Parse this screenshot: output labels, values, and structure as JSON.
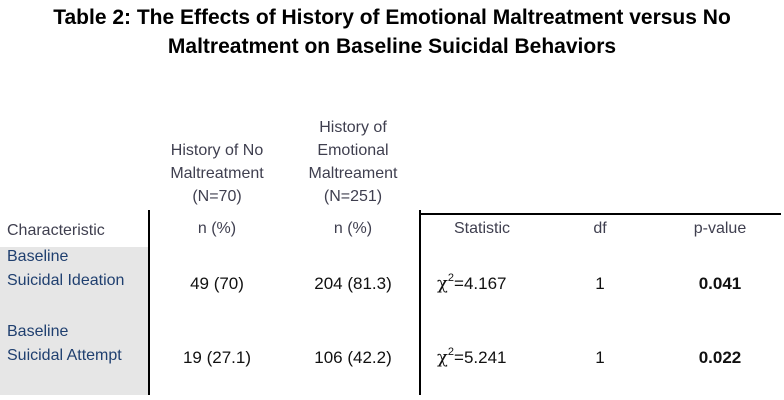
{
  "title": {
    "line1": "Table 2: The Effects of History of Emotional Maltreatment versus No",
    "line2": "Maltreatment on Baseline Suicidal Behaviors"
  },
  "columns": {
    "no_maltreatment": {
      "line1": "History of No",
      "line2": "Maltreatment",
      "line3": "(N=70)",
      "sub": "n (%)"
    },
    "emotional": {
      "line1": "History of",
      "line2": "Emotional",
      "line3": "Maltreament",
      "line4": "(N=251)",
      "sub": "n (%)"
    },
    "characteristic": "Characteristic",
    "statistic": "Statistic",
    "df": "df",
    "p_value": "p-value"
  },
  "rows": [
    {
      "label_line1": "Baseline",
      "label_line2": "Suicidal Ideation",
      "no_maltreatment": "49 (70)",
      "emotional": "204 (81.3)",
      "chi_symbol": "χ",
      "superscript": "2",
      "statistic_value": "=4.167",
      "df": "1",
      "p_value": "0.041"
    },
    {
      "label_line1": "Baseline",
      "label_line2": "Suicidal Attempt",
      "no_maltreatment": "19 (27.1)",
      "emotional": "106 (42.2)",
      "chi_symbol": "χ",
      "superscript": "2",
      "statistic_value": "=5.241",
      "df": "1",
      "p_value": "0.022"
    }
  ]
}
